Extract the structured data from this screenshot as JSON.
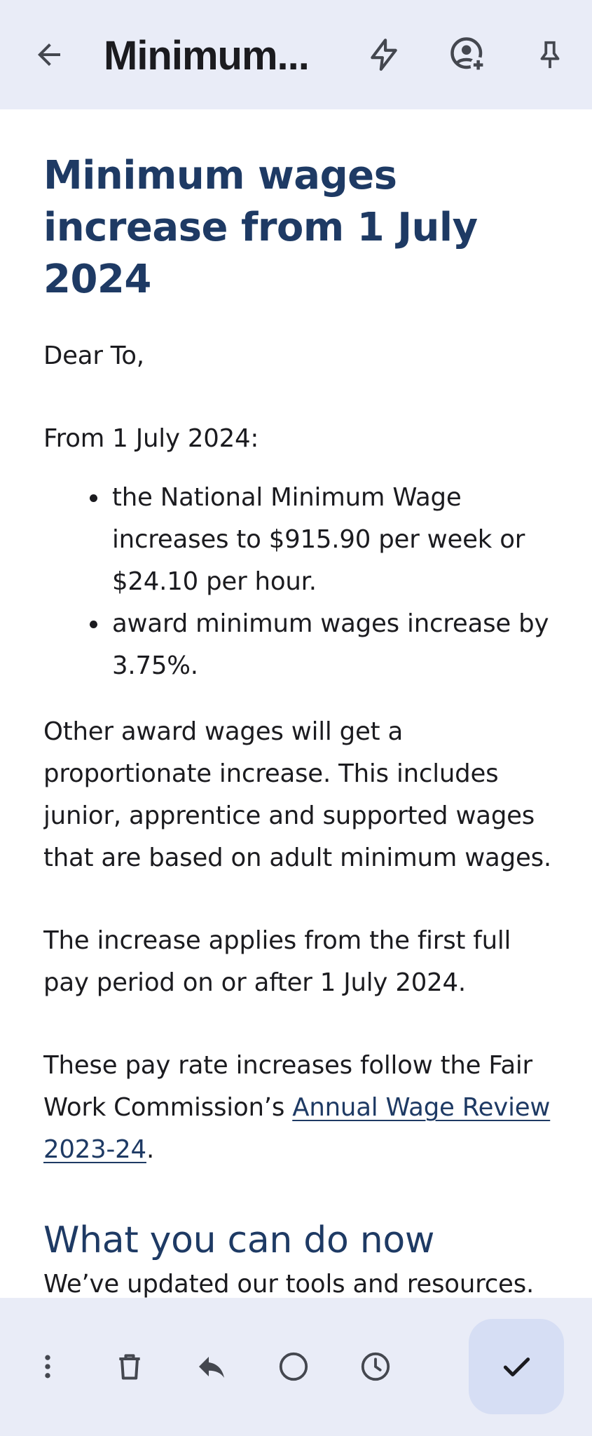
{
  "app_bar": {
    "title": "Minimum...",
    "icons": [
      "arrow-back-icon",
      "flash-icon",
      "add-person-icon",
      "pin-icon"
    ]
  },
  "email": {
    "headline": "Minimum wages increase from 1 July 2024",
    "greeting": "Dear To,",
    "intro": "From 1 July 2024:",
    "bullets": [
      "the National Minimum Wage increases to $915.90 per week or $24.10 per hour.",
      "award minimum wages increase by 3.75%."
    ],
    "para_other": "Other award wages will get a proportionate increase. This includes junior, apprentice and supported wages that are based on adult minimum wages.",
    "para_applies": "The increase applies from the first full pay period on or after 1 July 2024.",
    "para_follow_prefix": "These pay rate increases follow the Fair Work Commission’s ",
    "link_text": "Annual Wage Review 2023-24",
    "para_follow_suffix": ".",
    "subheading": "What you can do now",
    "subpara": "We’ve updated our tools and resources."
  },
  "bottom_bar": {
    "icons": [
      "more-vert-icon",
      "delete-icon",
      "reply-icon",
      "circle-icon",
      "clock-icon",
      "check-icon"
    ]
  },
  "colors": {
    "bar_bg": "#e9ecf7",
    "heading": "#1e3a64",
    "fab_bg": "#d6def4"
  }
}
